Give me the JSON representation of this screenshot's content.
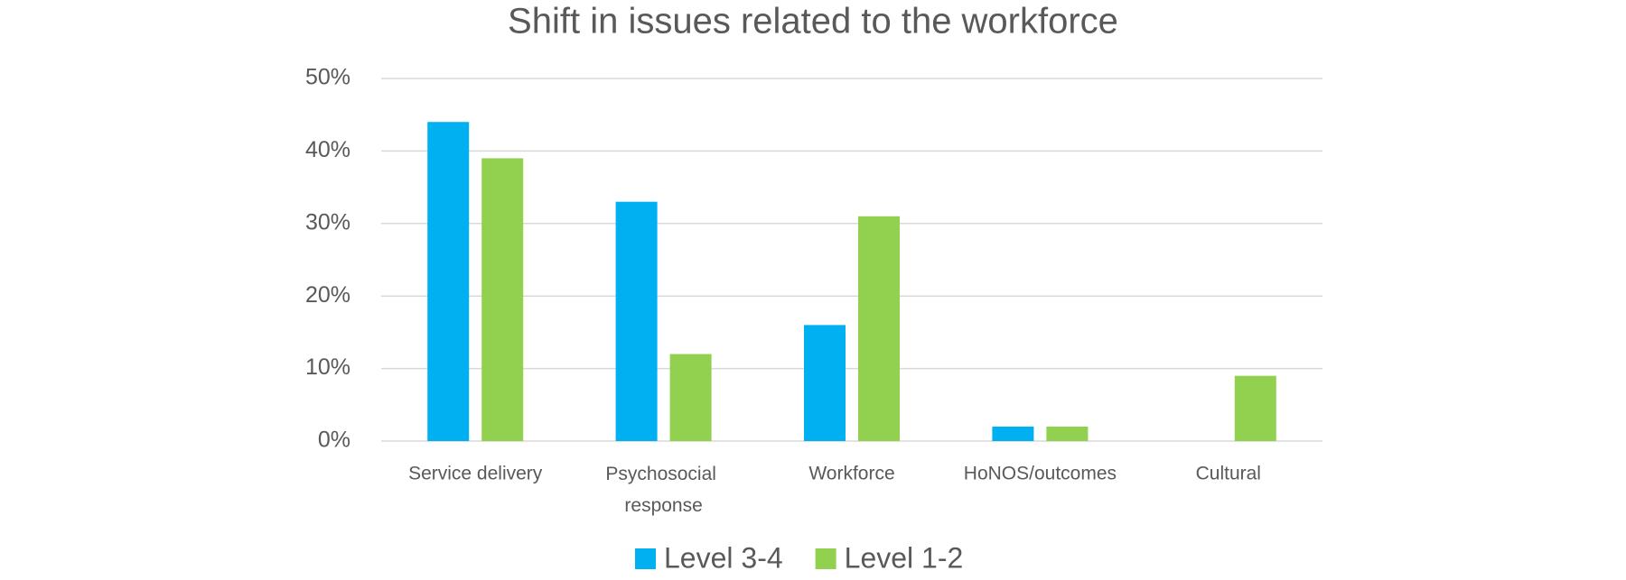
{
  "chart_data": {
    "type": "bar",
    "title": "Shift in issues related to the workforce",
    "categories": [
      "Service delivery",
      "Psychosocial response",
      "Workforce",
      "HoNOS/outcomes",
      "Cultural"
    ],
    "series": [
      {
        "name": "Level 3-4",
        "color": "#00b0f0",
        "values": [
          44,
          33,
          16,
          2,
          0
        ]
      },
      {
        "name": "Level 1-2",
        "color": "#92d050",
        "values": [
          39,
          12,
          31,
          2,
          9
        ]
      }
    ],
    "ylim": [
      0,
      50
    ],
    "yticks": [
      {
        "value": 0,
        "label": "0%"
      },
      {
        "value": 10,
        "label": "10%"
      },
      {
        "value": 20,
        "label": "20%"
      },
      {
        "value": 30,
        "label": "30%"
      },
      {
        "value": 40,
        "label": "40%"
      },
      {
        "value": 50,
        "label": "50%"
      }
    ],
    "grid": true,
    "legend": "bottom"
  }
}
